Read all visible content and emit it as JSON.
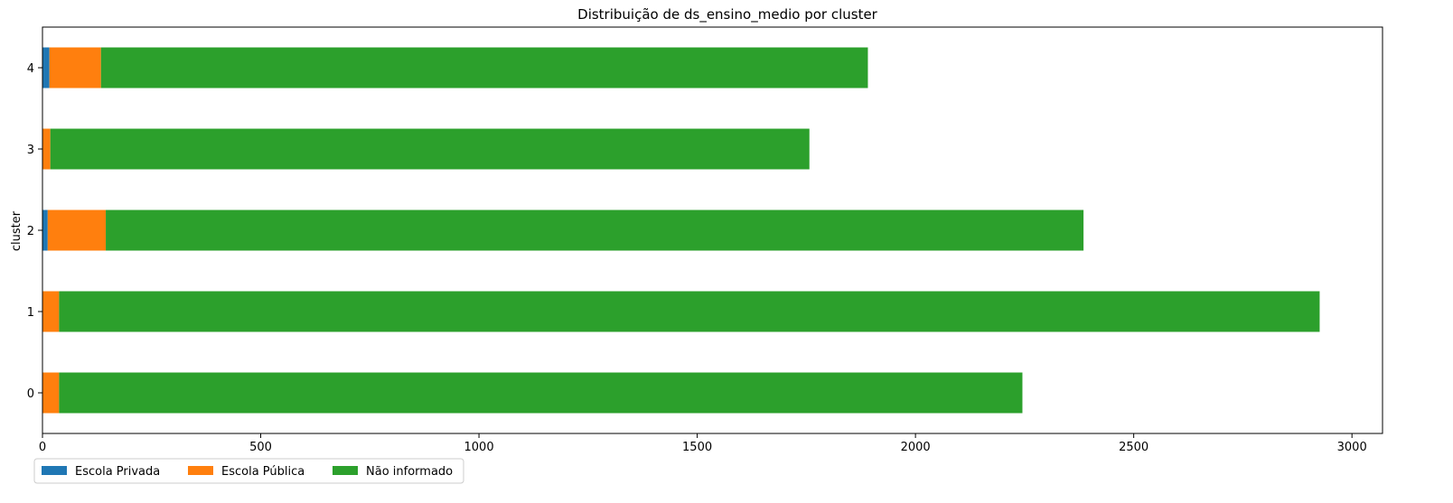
{
  "chart_data": {
    "type": "bar",
    "orientation": "horizontal",
    "stacked": true,
    "title": "Distribuição de ds_ensino_medio por cluster",
    "xlabel": "",
    "ylabel": "cluster",
    "categories": [
      "0",
      "1",
      "2",
      "3",
      "4"
    ],
    "series": [
      {
        "name": "Escola Privada",
        "color": "#1f77b4",
        "values": [
          0,
          0,
          12,
          0,
          16
        ]
      },
      {
        "name": "Escola Pública",
        "color": "#ff7f0e",
        "values": [
          38,
          38,
          133,
          18,
          118
        ]
      },
      {
        "name": "Não informado",
        "color": "#2ca02c",
        "values": [
          2207,
          2888,
          2240,
          1739,
          1757
        ]
      }
    ],
    "xlim": [
      0,
      3070
    ],
    "xticks": [
      "0",
      "500",
      "1000",
      "1500",
      "2000",
      "2500",
      "3000"
    ],
    "grid": false,
    "legend_position": "bottom-left (below axes)"
  }
}
